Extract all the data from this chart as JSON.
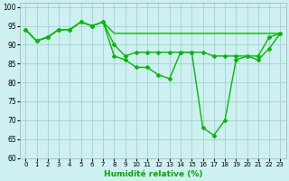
{
  "line_upper": {
    "x": [
      0,
      1,
      2,
      3,
      4,
      5,
      6,
      7,
      8,
      9,
      10,
      11,
      12,
      13,
      14,
      15,
      16,
      17,
      18,
      19,
      20,
      21,
      22,
      23
    ],
    "y": [
      94,
      91,
      92,
      94,
      94,
      96,
      95,
      96,
      93,
      93,
      93,
      93,
      93,
      93,
      93,
      93,
      93,
      93,
      93,
      93,
      93,
      93,
      93,
      93
    ]
  },
  "line_mid": {
    "x": [
      0,
      1,
      2,
      3,
      4,
      5,
      6,
      7,
      8,
      9,
      10,
      11,
      12,
      13,
      14,
      15,
      16,
      17,
      18,
      19,
      20,
      21,
      22,
      23
    ],
    "y": [
      94,
      91,
      92,
      94,
      94,
      96,
      95,
      96,
      90,
      87,
      88,
      88,
      88,
      88,
      88,
      88,
      88,
      87,
      87,
      87,
      87,
      87,
      92,
      93
    ]
  },
  "line_lower": {
    "x": [
      0,
      1,
      2,
      3,
      4,
      5,
      6,
      7,
      8,
      9,
      10,
      11,
      12,
      13,
      14,
      15,
      16,
      17,
      18,
      19,
      20,
      21,
      22,
      23
    ],
    "y": [
      94,
      91,
      92,
      94,
      94,
      96,
      95,
      96,
      87,
      86,
      84,
      84,
      82,
      81,
      88,
      88,
      68,
      66,
      70,
      86,
      87,
      86,
      89,
      93
    ]
  },
  "xlabel": "Humidité relative (%)",
  "xlim": [
    -0.5,
    23.5
  ],
  "ylim": [
    60,
    101
  ],
  "yticks": [
    60,
    65,
    70,
    75,
    80,
    85,
    90,
    95,
    100
  ],
  "xticks": [
    0,
    1,
    2,
    3,
    4,
    5,
    6,
    7,
    8,
    9,
    10,
    11,
    12,
    13,
    14,
    15,
    16,
    17,
    18,
    19,
    20,
    21,
    22,
    23
  ],
  "bg_color": "#cef0f0",
  "grid_color": "#99cccc",
  "line_color": "#00bb00",
  "tick_label_color": "#000000",
  "xlabel_color": "#00aa00"
}
